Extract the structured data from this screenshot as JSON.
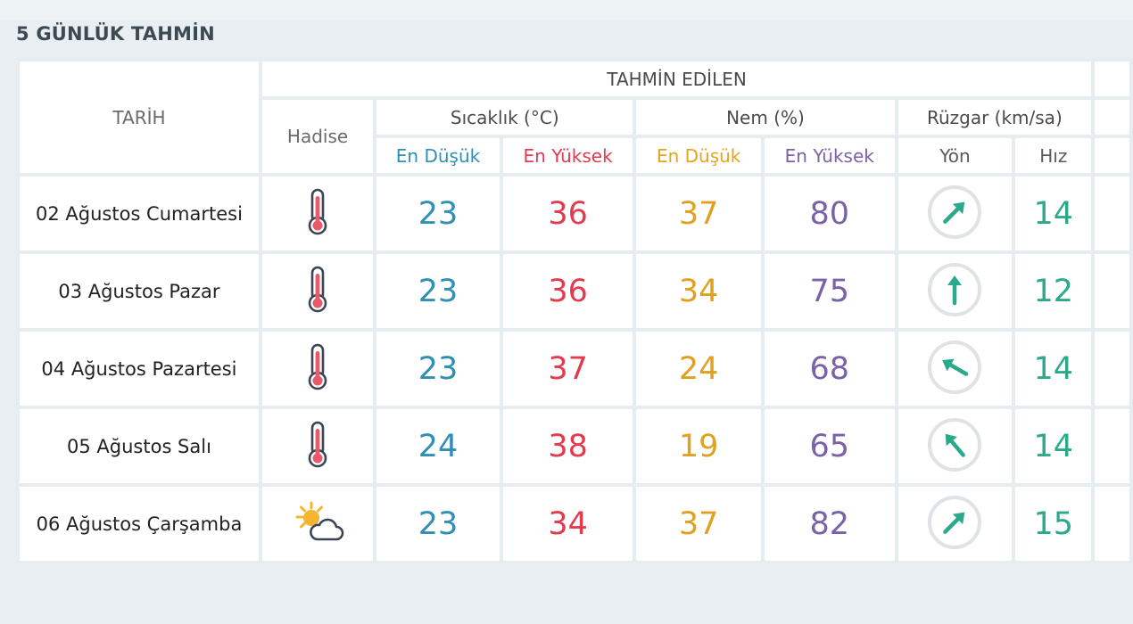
{
  "section_title": "5 GÜNLÜK TAHMİN",
  "header": {
    "tarih": "TARİH",
    "tahmin_edilen": "TAHMİN EDİLEN",
    "hadise": "Hadise",
    "sicaklik": "Sıcaklık (°C)",
    "nem": "Nem (%)",
    "ruzgar": "Rüzgar (km/sa)",
    "sic_low": "En Düşük",
    "sic_high": "En Yüksek",
    "nem_low": "En Düşük",
    "nem_high": "En Yüksek",
    "yon": "Yön",
    "hiz": "Hız"
  },
  "colors": {
    "temp_low": "#2f8fb5",
    "temp_high": "#e23a4f",
    "hum_low": "#e0a020",
    "hum_high": "#7a62a8",
    "wind": "#2aaa8a"
  },
  "days": [
    {
      "date": "02 Ağustos Cumartesi",
      "icon": "thermometer-hot-icon",
      "temp_low": "23",
      "temp_high": "36",
      "hum_low": "37",
      "hum_high": "80",
      "wind_dir_deg": 225,
      "wind_dir_icon": "arrow-southwest-icon",
      "wind_speed": "14"
    },
    {
      "date": "03 Ağustos Pazar",
      "icon": "thermometer-hot-icon",
      "temp_low": "23",
      "temp_high": "36",
      "hum_low": "34",
      "hum_high": "75",
      "wind_dir_deg": 180,
      "wind_dir_icon": "arrow-south-icon",
      "wind_speed": "12"
    },
    {
      "date": "04 Ağustos Pazartesi",
      "icon": "thermometer-hot-icon",
      "temp_low": "23",
      "temp_high": "37",
      "hum_low": "24",
      "hum_high": "68",
      "wind_dir_deg": 120,
      "wind_dir_icon": "arrow-southeast-icon",
      "wind_speed": "14"
    },
    {
      "date": "05 Ağustos Salı",
      "icon": "thermometer-hot-icon",
      "temp_low": "24",
      "temp_high": "38",
      "hum_low": "19",
      "hum_high": "65",
      "wind_dir_deg": 140,
      "wind_dir_icon": "arrow-southeast-icon",
      "wind_speed": "14"
    },
    {
      "date": "06 Ağustos Çarşamba",
      "icon": "partly-cloudy-sun-icon",
      "temp_low": "23",
      "temp_high": "34",
      "hum_low": "37",
      "hum_high": "82",
      "wind_dir_deg": 225,
      "wind_dir_icon": "arrow-southwest-icon",
      "wind_speed": "15"
    }
  ]
}
